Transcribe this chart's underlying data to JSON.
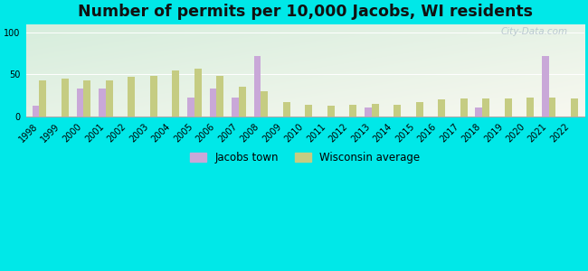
{
  "title": "Number of permits per 10,000 Jacobs, WI residents",
  "years": [
    1998,
    1999,
    2000,
    2001,
    2002,
    2003,
    2004,
    2005,
    2006,
    2007,
    2008,
    2009,
    2010,
    2011,
    2012,
    2013,
    2014,
    2015,
    2016,
    2017,
    2018,
    2019,
    2020,
    2021,
    2022
  ],
  "jacobs_town": [
    12,
    0,
    33,
    33,
    0,
    0,
    0,
    22,
    33,
    22,
    72,
    0,
    0,
    0,
    0,
    10,
    0,
    0,
    0,
    0,
    10,
    0,
    0,
    72,
    0
  ],
  "wisconsin_avg": [
    43,
    45,
    43,
    43,
    47,
    48,
    55,
    57,
    48,
    35,
    30,
    17,
    14,
    12,
    14,
    15,
    14,
    17,
    20,
    21,
    21,
    21,
    22,
    22,
    21
  ],
  "jacobs_color": "#c9a8d8",
  "wisconsin_color": "#c5cc82",
  "bg_color": "#00e8e8",
  "plot_bg_color_topleft": "#d6eddc",
  "plot_bg_color_bottomright": "#f0f5e8",
  "ylim": [
    0,
    110
  ],
  "yticks": [
    0,
    50,
    100
  ],
  "bar_width": 0.32,
  "title_fontsize": 12.5,
  "legend_fontsize": 8.5,
  "tick_fontsize": 7
}
